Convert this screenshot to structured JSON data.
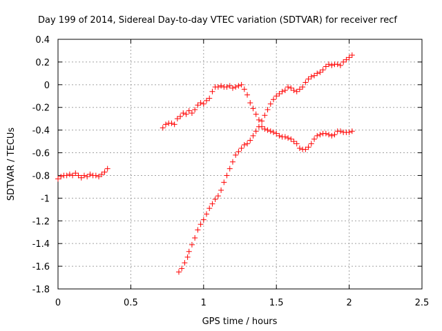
{
  "chart_data": {
    "type": "scatter",
    "title": "Day 199 of 2014, Sidereal Day-to-day VTEC variation (SDTVAR) for receiver recf",
    "xlabel": "GPS time / hours",
    "ylabel": "SDTVAR / TECUs",
    "xlim": [
      0,
      2.5
    ],
    "ylim": [
      -1.8,
      0.4
    ],
    "x_ticks": [
      "0",
      "0.5",
      "1",
      "1.5",
      "2",
      "2.5"
    ],
    "y_ticks": [
      "0.4",
      "0.2",
      "0",
      "-0.2",
      "-0.4",
      "-0.6",
      "-0.8",
      "-1",
      "-1.2",
      "-1.4",
      "-1.6",
      "-1.8"
    ],
    "grid": true,
    "marker": "+",
    "point_color": "#ff0000",
    "series": [
      {
        "points": [
          [
            0.0,
            -0.83
          ],
          [
            0.02,
            -0.81
          ],
          [
            0.04,
            -0.8
          ],
          [
            0.06,
            -0.8
          ],
          [
            0.08,
            -0.79
          ],
          [
            0.1,
            -0.8
          ],
          [
            0.12,
            -0.78
          ],
          [
            0.14,
            -0.8
          ],
          [
            0.16,
            -0.82
          ],
          [
            0.18,
            -0.8
          ],
          [
            0.2,
            -0.81
          ],
          [
            0.22,
            -0.79
          ],
          [
            0.24,
            -0.8
          ],
          [
            0.26,
            -0.8
          ],
          [
            0.28,
            -0.81
          ],
          [
            0.3,
            -0.79
          ],
          [
            0.32,
            -0.77
          ],
          [
            0.34,
            -0.74
          ]
        ]
      },
      {
        "points": [
          [
            0.72,
            -0.38
          ],
          [
            0.74,
            -0.35
          ],
          [
            0.76,
            -0.34
          ],
          [
            0.78,
            -0.34
          ],
          [
            0.8,
            -0.35
          ],
          [
            0.82,
            -0.3
          ],
          [
            0.84,
            -0.28
          ],
          [
            0.86,
            -0.25
          ],
          [
            0.88,
            -0.26
          ],
          [
            0.9,
            -0.23
          ],
          [
            0.92,
            -0.25
          ],
          [
            0.94,
            -0.22
          ],
          [
            0.96,
            -0.18
          ],
          [
            0.98,
            -0.16
          ],
          [
            1.0,
            -0.17
          ],
          [
            1.02,
            -0.14
          ],
          [
            1.04,
            -0.12
          ],
          [
            1.06,
            -0.06
          ],
          [
            1.08,
            -0.02
          ],
          [
            1.1,
            -0.02
          ],
          [
            1.12,
            -0.01
          ],
          [
            1.14,
            -0.02
          ],
          [
            1.16,
            -0.02
          ],
          [
            1.18,
            -0.01
          ],
          [
            1.2,
            -0.03
          ],
          [
            1.22,
            -0.02
          ],
          [
            1.24,
            -0.01
          ],
          [
            1.26,
            0.0
          ],
          [
            1.28,
            -0.04
          ],
          [
            1.3,
            -0.09
          ],
          [
            1.32,
            -0.16
          ],
          [
            1.34,
            -0.21
          ],
          [
            1.36,
            -0.26
          ],
          [
            1.38,
            -0.31
          ],
          [
            1.4,
            -0.37
          ],
          [
            1.42,
            -0.39
          ],
          [
            1.44,
            -0.4
          ],
          [
            1.46,
            -0.41
          ],
          [
            1.48,
            -0.42
          ],
          [
            1.5,
            -0.43
          ],
          [
            1.52,
            -0.45
          ],
          [
            1.54,
            -0.46
          ],
          [
            1.56,
            -0.46
          ],
          [
            1.58,
            -0.47
          ],
          [
            1.6,
            -0.48
          ],
          [
            1.62,
            -0.5
          ],
          [
            1.64,
            -0.52
          ],
          [
            1.66,
            -0.56
          ],
          [
            1.68,
            -0.57
          ],
          [
            1.7,
            -0.57
          ],
          [
            1.72,
            -0.55
          ],
          [
            1.74,
            -0.52
          ],
          [
            1.76,
            -0.48
          ],
          [
            1.78,
            -0.45
          ],
          [
            1.8,
            -0.44
          ],
          [
            1.82,
            -0.43
          ],
          [
            1.84,
            -0.43
          ],
          [
            1.86,
            -0.44
          ],
          [
            1.88,
            -0.45
          ],
          [
            1.9,
            -0.44
          ],
          [
            1.92,
            -0.41
          ],
          [
            1.94,
            -0.41
          ],
          [
            1.96,
            -0.42
          ],
          [
            1.98,
            -0.42
          ],
          [
            2.0,
            -0.42
          ],
          [
            2.02,
            -0.41
          ]
        ]
      },
      {
        "points": [
          [
            0.83,
            -1.65
          ],
          [
            0.85,
            -1.62
          ],
          [
            0.87,
            -1.57
          ],
          [
            0.89,
            -1.52
          ],
          [
            0.9,
            -1.47
          ],
          [
            0.92,
            -1.41
          ],
          [
            0.94,
            -1.35
          ],
          [
            0.96,
            -1.28
          ],
          [
            0.98,
            -1.23
          ],
          [
            1.0,
            -1.19
          ],
          [
            1.02,
            -1.14
          ],
          [
            1.04,
            -1.09
          ],
          [
            1.06,
            -1.05
          ],
          [
            1.08,
            -1.01
          ],
          [
            1.1,
            -0.98
          ],
          [
            1.12,
            -0.93
          ],
          [
            1.14,
            -0.86
          ],
          [
            1.16,
            -0.8
          ],
          [
            1.18,
            -0.74
          ],
          [
            1.2,
            -0.68
          ],
          [
            1.22,
            -0.62
          ],
          [
            1.24,
            -0.59
          ],
          [
            1.26,
            -0.56
          ],
          [
            1.28,
            -0.53
          ],
          [
            1.3,
            -0.52
          ],
          [
            1.32,
            -0.49
          ],
          [
            1.34,
            -0.45
          ],
          [
            1.36,
            -0.41
          ],
          [
            1.38,
            -0.37
          ],
          [
            1.4,
            -0.32
          ],
          [
            1.42,
            -0.27
          ],
          [
            1.44,
            -0.22
          ],
          [
            1.46,
            -0.17
          ],
          [
            1.48,
            -0.13
          ],
          [
            1.5,
            -0.1
          ],
          [
            1.52,
            -0.08
          ],
          [
            1.54,
            -0.06
          ],
          [
            1.56,
            -0.05
          ],
          [
            1.58,
            -0.02
          ],
          [
            1.6,
            -0.03
          ],
          [
            1.62,
            -0.05
          ],
          [
            1.64,
            -0.06
          ],
          [
            1.66,
            -0.04
          ],
          [
            1.68,
            -0.02
          ],
          [
            1.7,
            0.02
          ],
          [
            1.72,
            0.05
          ],
          [
            1.74,
            0.07
          ],
          [
            1.76,
            0.08
          ],
          [
            1.78,
            0.1
          ],
          [
            1.8,
            0.11
          ],
          [
            1.82,
            0.13
          ],
          [
            1.84,
            0.16
          ],
          [
            1.86,
            0.18
          ],
          [
            1.88,
            0.17
          ],
          [
            1.9,
            0.18
          ],
          [
            1.92,
            0.18
          ],
          [
            1.94,
            0.17
          ],
          [
            1.96,
            0.2
          ],
          [
            1.98,
            0.22
          ],
          [
            2.0,
            0.24
          ],
          [
            2.02,
            0.26
          ]
        ]
      }
    ]
  }
}
